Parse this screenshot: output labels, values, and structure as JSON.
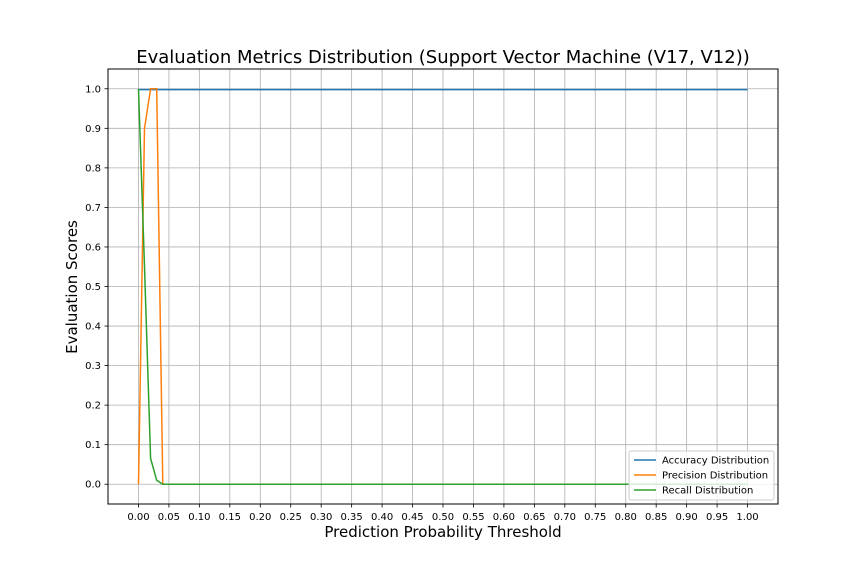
{
  "chart_data": {
    "type": "line",
    "title": "Evaluation Metrics Distribution (Support Vector Machine (V17, V12))",
    "xlabel": "Prediction Probability Threshold",
    "ylabel": "Evaluation Scores",
    "xlim": [
      -0.05,
      1.05
    ],
    "ylim": [
      -0.05,
      1.05
    ],
    "xticks": [
      "0.00",
      "0.05",
      "0.10",
      "0.15",
      "0.20",
      "0.25",
      "0.30",
      "0.35",
      "0.40",
      "0.45",
      "0.50",
      "0.55",
      "0.60",
      "0.65",
      "0.70",
      "0.75",
      "0.80",
      "0.85",
      "0.90",
      "0.95",
      "1.00"
    ],
    "yticks": [
      "0.0",
      "0.1",
      "0.2",
      "0.3",
      "0.4",
      "0.5",
      "0.6",
      "0.7",
      "0.8",
      "0.9",
      "1.0"
    ],
    "grid": true,
    "legend_position": "lower-right",
    "series": [
      {
        "name": "Accuracy Distribution",
        "color": "#1f77b4",
        "x": [
          0.0,
          0.01,
          0.02,
          0.03,
          0.04,
          0.05,
          1.0
        ],
        "y": [
          0.998,
          0.998,
          0.998,
          0.998,
          0.998,
          0.998,
          0.998
        ]
      },
      {
        "name": "Precision Distribution",
        "color": "#ff7f0e",
        "x": [
          0.0,
          0.01,
          0.02,
          0.03,
          0.04,
          0.05,
          1.0
        ],
        "y": [
          0.0,
          0.9,
          1.0,
          1.0,
          0.0,
          0.0,
          0.0
        ]
      },
      {
        "name": "Recall Distribution",
        "color": "#2ca02c",
        "x": [
          0.0,
          0.01,
          0.02,
          0.03,
          0.04,
          0.05,
          1.0
        ],
        "y": [
          1.0,
          0.55,
          0.065,
          0.01,
          0.0,
          0.0,
          0.0
        ]
      }
    ]
  }
}
